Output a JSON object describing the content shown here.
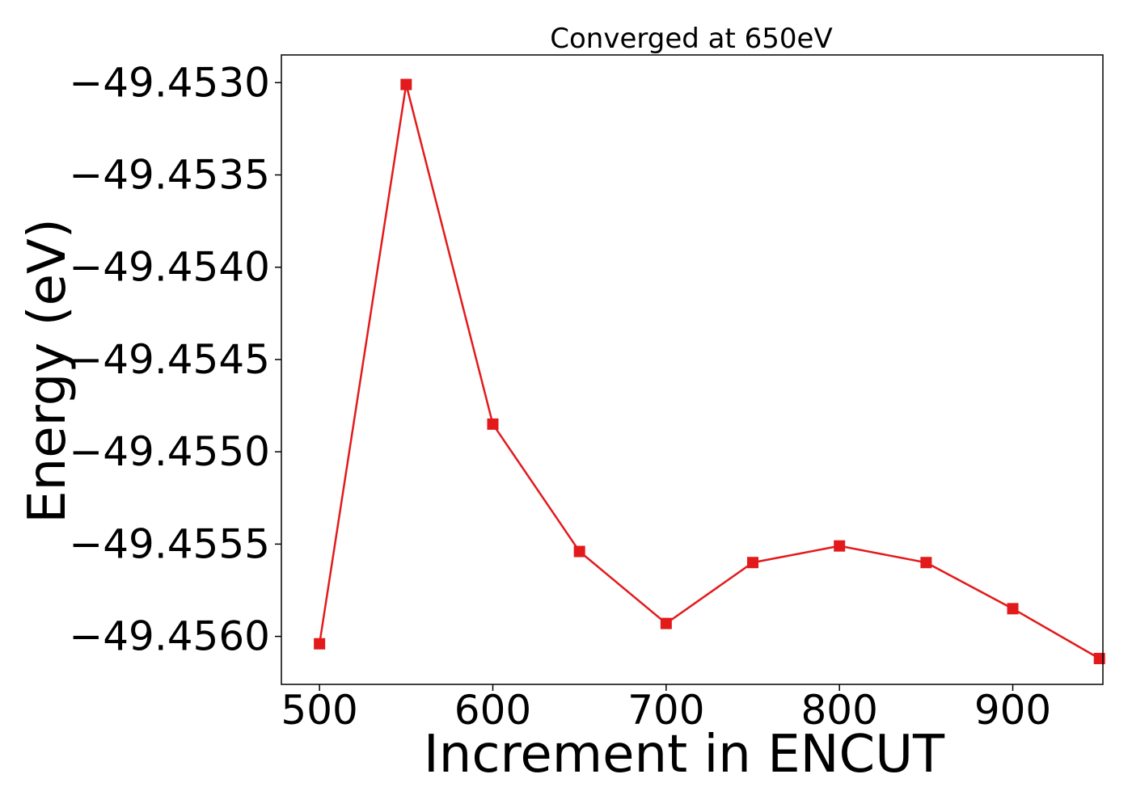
{
  "chart_data": {
    "type": "line",
    "title": "Converged at 650eV",
    "xlabel": "Increment in ENCUT",
    "ylabel": "Energy (eV)",
    "x": [
      500,
      550,
      600,
      650,
      700,
      750,
      800,
      850,
      900,
      950
    ],
    "series": [
      {
        "values": [
          -49.45604,
          -49.45301,
          -49.45485,
          -49.45554,
          -49.45593,
          -49.4556,
          -49.45551,
          -49.4556,
          -49.45585,
          -49.45612
        ],
        "color": "#e31a1c",
        "marker": "square"
      }
    ],
    "xlim": [
      478,
      952
    ],
    "ylim": [
      -49.45626,
      -49.45285
    ],
    "xticks": [
      500,
      600,
      700,
      800,
      900
    ],
    "xtick_labels": [
      "500",
      "600",
      "700",
      "800",
      "900"
    ],
    "yticks": [
      -49.456,
      -49.4555,
      -49.455,
      -49.4545,
      -49.454,
      -49.4535,
      -49.453
    ],
    "ytick_labels": [
      "−49.4560",
      "−49.4555",
      "−49.4550",
      "−49.4545",
      "−49.4540",
      "−49.4535",
      "−49.4530"
    ],
    "grid": false,
    "legend": "none"
  }
}
